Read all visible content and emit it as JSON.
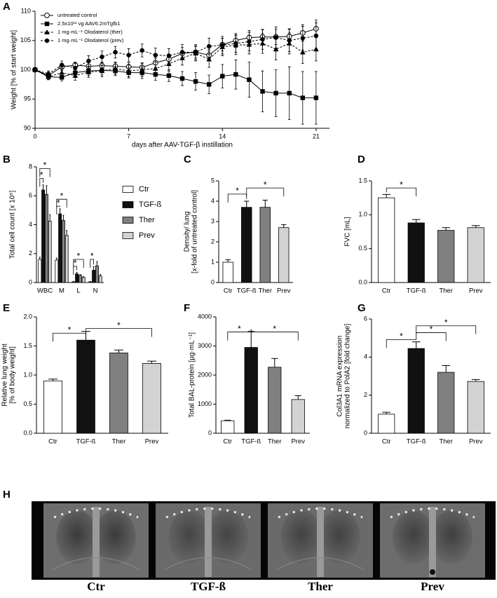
{
  "chart_data": [
    {
      "type": "line",
      "panel": "A",
      "xlabel": "days after AAV-TGF-β instillation",
      "ylabel": [
        "Weight [% of start weight]"
      ],
      "x": [
        0,
        1,
        2,
        3,
        4,
        5,
        6,
        7,
        8,
        9,
        10,
        11,
        12,
        13,
        14,
        15,
        16,
        17,
        18,
        19,
        20,
        21
      ],
      "xlim": [
        0,
        22
      ],
      "xticks": [
        0,
        7,
        14,
        21
      ],
      "ylim": [
        90,
        110
      ],
      "yticks": [
        90,
        95,
        100,
        105,
        110
      ],
      "series": [
        {
          "name": "untreated control",
          "color": "#000000",
          "marker": "open-circle",
          "line_style": "solid",
          "values": [
            100,
            99.0,
            100.5,
            100.8,
            100.6,
            100.7,
            100.6,
            100.5,
            100.4,
            101.2,
            101.8,
            102.8,
            103.0,
            102.5,
            104.3,
            105.0,
            105.5,
            105.6,
            105.6,
            105.7,
            106.3,
            107.0
          ],
          "errors": [
            0,
            0.4,
            0.6,
            0.5,
            0.6,
            0.6,
            0.7,
            0.7,
            0.8,
            0.8,
            0.9,
            1.0,
            1.0,
            1.0,
            1.1,
            1.2,
            1.2,
            1.2,
            1.3,
            1.3,
            1.4,
            1.5
          ]
        },
        {
          "name": "2.5x10¹¹ vg AAV6.2mTgfb1",
          "color": "#000000",
          "marker": "square",
          "line_style": "solid",
          "values": [
            100,
            98.8,
            98.7,
            99.5,
            99.8,
            99.9,
            99.8,
            99.5,
            99.5,
            99.2,
            99.0,
            98.5,
            98.0,
            97.5,
            98.9,
            99.2,
            98.3,
            96.3,
            96.0,
            96.0,
            95.2,
            95.2
          ],
          "errors": [
            0,
            0.5,
            0.6,
            0.8,
            0.8,
            0.8,
            0.8,
            0.9,
            1.0,
            1.0,
            1.0,
            1.2,
            1.5,
            1.6,
            2.0,
            2.5,
            3.0,
            3.5,
            4.0,
            4.5,
            4.5,
            4.5
          ]
        },
        {
          "name": "1 mg·mL⁻¹ Olodaterol (ther)",
          "color": "#000000",
          "marker": "triangle",
          "line_style": "dashed",
          "values": [
            100,
            98.8,
            99.5,
            99.0,
            99.6,
            99.8,
            100.2,
            99.8,
            100.0,
            100.2,
            101.0,
            102.0,
            102.8,
            101.8,
            103.9,
            104.2,
            104.3,
            104.5,
            103.5,
            104.5,
            103.0,
            103.5
          ],
          "errors": [
            0,
            0.5,
            0.8,
            0.8,
            0.9,
            1.0,
            1.0,
            1.0,
            1.1,
            1.1,
            1.2,
            1.2,
            1.3,
            1.4,
            1.5,
            1.6,
            1.6,
            1.7,
            1.8,
            1.8,
            1.9,
            2.0
          ]
        },
        {
          "name": "1 mg·mL⁻¹ Olodaterol (prev)",
          "color": "#000000",
          "marker": "filled-circle",
          "line_style": "dashed",
          "values": [
            100,
            99.3,
            100.8,
            100.3,
            101.5,
            102.2,
            103.0,
            102.5,
            103.3,
            102.5,
            102.4,
            103.0,
            103.0,
            104.0,
            104.2,
            104.5,
            104.8,
            105.2,
            105.5,
            105.0,
            105.4,
            105.8
          ],
          "errors": [
            0,
            0.5,
            0.7,
            0.8,
            0.9,
            1.0,
            1.0,
            1.1,
            1.1,
            1.2,
            1.2,
            1.3,
            1.3,
            1.4,
            1.5,
            1.5,
            1.6,
            1.7,
            1.8,
            1.9,
            2.0,
            2.2
          ]
        }
      ]
    },
    {
      "type": "grouped-bar",
      "panel": "B",
      "ylabel": [
        "Total cell count [x 10⁵]"
      ],
      "categories": [
        "WBC",
        "M",
        "L",
        "N"
      ],
      "ylim": [
        0,
        8
      ],
      "yticks": [
        0,
        2,
        4,
        6,
        8
      ],
      "series": [
        {
          "name": "Ctr",
          "color": "#ffffff",
          "values": [
            1.6,
            1.55,
            0.05,
            0.05
          ],
          "errors": [
            0.15,
            0.15,
            0.02,
            0.02
          ]
        },
        {
          "name": "TGF-ß",
          "color": "#111111",
          "values": [
            6.4,
            4.75,
            0.6,
            0.85
          ],
          "errors": [
            0.35,
            0.35,
            0.1,
            0.25
          ]
        },
        {
          "name": "Ther",
          "color": "#808080",
          "values": [
            6.1,
            4.3,
            0.5,
            1.15
          ],
          "errors": [
            0.6,
            0.35,
            0.05,
            0.3
          ]
        },
        {
          "name": "Prev",
          "color": "#d3d3d3",
          "values": [
            4.25,
            3.25,
            0.35,
            0.45
          ],
          "errors": [
            0.45,
            0.35,
            0.05,
            0.1
          ]
        }
      ],
      "annotations": [
        "*",
        "*",
        "*",
        "*",
        "*",
        "*",
        "*"
      ]
    },
    {
      "type": "bar",
      "panel": "C",
      "ylabel": [
        "Density/ lung",
        "[x-fold of untreated control]"
      ],
      "categories": [
        "Ctr",
        "TGF-ß",
        "Ther",
        "Prev"
      ],
      "values": [
        1.0,
        3.7,
        3.7,
        2.7
      ],
      "errors": [
        0.12,
        0.3,
        0.35,
        0.15
      ],
      "colors": [
        "#ffffff",
        "#111111",
        "#808080",
        "#d3d3d3"
      ],
      "ylim": [
        0,
        5
      ],
      "yticks": [
        0,
        1,
        2,
        3,
        4,
        5
      ],
      "annotations": [
        "*",
        "*"
      ]
    },
    {
      "type": "bar",
      "panel": "D",
      "ylabel": [
        "FVC [mL]"
      ],
      "categories": [
        "Ctr",
        "TGF-ß",
        "Ther",
        "Prev"
      ],
      "values": [
        1.25,
        0.88,
        0.77,
        0.81
      ],
      "errors": [
        0.05,
        0.05,
        0.04,
        0.03
      ],
      "colors": [
        "#ffffff",
        "#111111",
        "#808080",
        "#d3d3d3"
      ],
      "ylim": [
        0,
        1.5
      ],
      "yticks": [
        {
          "value": 0,
          "label": "0.0"
        },
        0.5,
        {
          "value": 1,
          "label": "1.0"
        },
        1.5
      ],
      "annotations": [
        "*"
      ]
    },
    {
      "type": "bar",
      "panel": "E",
      "ylabel": [
        "Relative lung weight",
        "[% of body weight]"
      ],
      "categories": [
        "Ctr",
        "TGF-ß",
        "Ther",
        "Prev"
      ],
      "values": [
        0.9,
        1.6,
        1.38,
        1.2
      ],
      "errors": [
        0.03,
        0.15,
        0.05,
        0.04
      ],
      "colors": [
        "#ffffff",
        "#111111",
        "#808080",
        "#d3d3d3"
      ],
      "ylim": [
        0,
        2
      ],
      "yticks": [
        {
          "value": 0,
          "label": "0.0"
        },
        0.5,
        {
          "value": 1,
          "label": "1.0"
        },
        1.5,
        {
          "value": 2,
          "label": "2.0"
        }
      ],
      "annotations": [
        "*",
        "*"
      ]
    },
    {
      "type": "bar",
      "panel": "F",
      "ylabel": [
        "Total BAL-protein [µg·mL⁻¹]"
      ],
      "categories": [
        "Ctr",
        "TGF-ß",
        "Ther",
        "Prev"
      ],
      "values": [
        430,
        2950,
        2270,
        1160
      ],
      "errors": [
        20,
        550,
        300,
        130
      ],
      "colors": [
        "#ffffff",
        "#111111",
        "#808080",
        "#d3d3d3"
      ],
      "ylim": [
        0,
        4000
      ],
      "yticks": [
        0,
        1000,
        2000,
        3000,
        4000
      ],
      "annotations": [
        "*",
        "*"
      ]
    },
    {
      "type": "bar",
      "panel": "G",
      "ylabel": [
        "Col3A1 mRNA expression",
        "normalized to  PolA2 [fold change]"
      ],
      "categories": [
        "Ctr",
        "TGF-ß",
        "Ther",
        "Prev"
      ],
      "values": [
        1.0,
        4.45,
        3.2,
        2.72
      ],
      "errors": [
        0.1,
        0.35,
        0.35,
        0.1
      ],
      "colors": [
        "#ffffff",
        "#111111",
        "#808080",
        "#d3d3d3"
      ],
      "ylim": [
        0,
        6
      ],
      "yticks": [
        0,
        2,
        4,
        6
      ],
      "annotations": [
        "*",
        "*",
        "*"
      ]
    }
  ],
  "figure_h": {
    "panel": "H",
    "captions": [
      "Ctr",
      "TGF-ß",
      "Ther",
      "Prev"
    ]
  }
}
